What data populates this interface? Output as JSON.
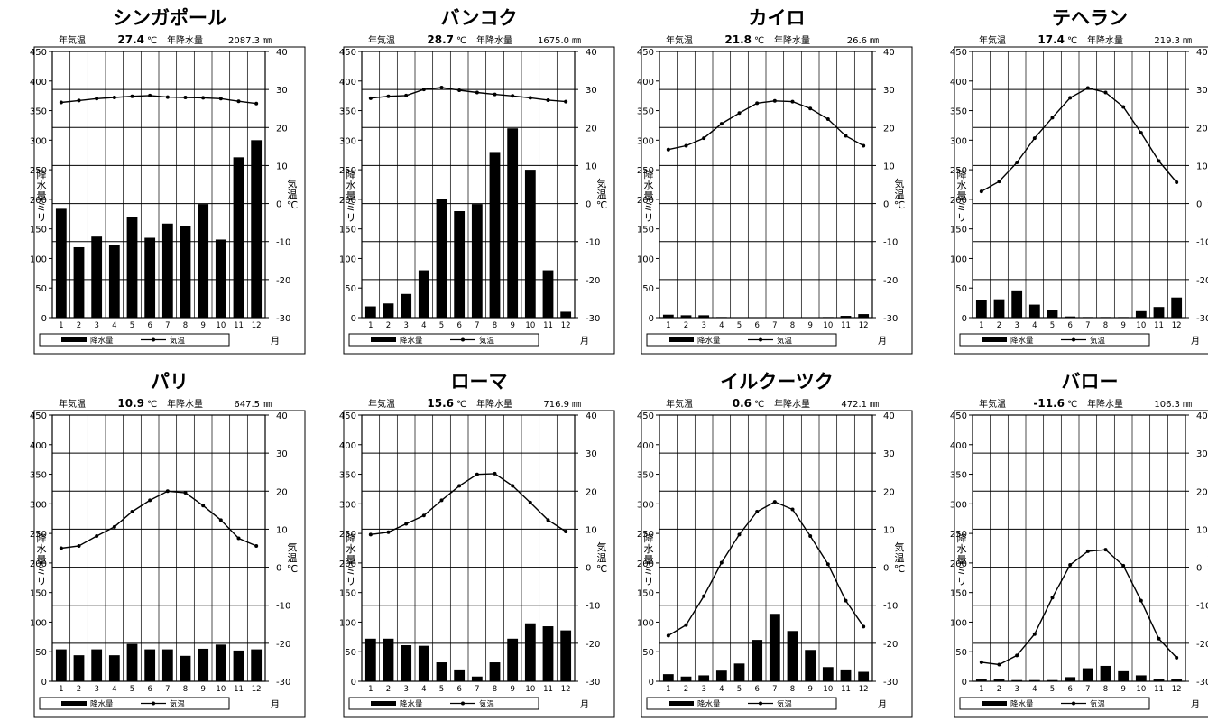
{
  "labels": {
    "annual_temp": "年気温",
    "temp_unit": "℃",
    "annual_precip": "年降水量",
    "precip_unit": "㎜",
    "left_axis": [
      "降",
      "水",
      "量",
      "ミ",
      "リ"
    ],
    "right_axis": [
      "気",
      "温",
      "℃"
    ],
    "month_unit": "月",
    "legend_precip": "降水量",
    "legend_temp": "気温"
  },
  "chart_data": [
    {
      "type": "bar+line",
      "title": "シンガポール",
      "annual_temp": "27.4",
      "annual_precip": "2087.3",
      "categories": [
        "1",
        "2",
        "3",
        "4",
        "5",
        "6",
        "7",
        "8",
        "9",
        "10",
        "11",
        "12"
      ],
      "series": [
        {
          "name": "降水量",
          "axis": "left",
          "type": "bar",
          "values": [
            184,
            119,
            137,
            123,
            170,
            135,
            159,
            155,
            192,
            132,
            271,
            300
          ]
        },
        {
          "name": "気温",
          "axis": "right",
          "type": "line",
          "values": [
            26.6,
            27.1,
            27.6,
            27.9,
            28.2,
            28.4,
            28.0,
            27.9,
            27.8,
            27.6,
            26.9,
            26.3
          ]
        }
      ],
      "ylim_left": [
        0,
        450
      ],
      "yticks_left": [
        0,
        50,
        100,
        150,
        200,
        250,
        300,
        350,
        400,
        450
      ],
      "ylim_right": [
        -30,
        40
      ],
      "yticks_right": [
        -30,
        -20,
        -10,
        0,
        10,
        20,
        30,
        40
      ],
      "grid": true,
      "legend_position": "bottom"
    },
    {
      "type": "bar+line",
      "title": "バンコク",
      "annual_temp": "28.7",
      "annual_precip": "1675.0",
      "categories": [
        "1",
        "2",
        "3",
        "4",
        "5",
        "6",
        "7",
        "8",
        "9",
        "10",
        "11",
        "12"
      ],
      "series": [
        {
          "name": "降水量",
          "axis": "left",
          "type": "bar",
          "values": [
            19,
            24,
            40,
            80,
            200,
            180,
            192,
            280,
            320,
            250,
            80,
            10
          ]
        },
        {
          "name": "気温",
          "axis": "right",
          "type": "line",
          "values": [
            27.7,
            28.2,
            28.4,
            30.0,
            30.5,
            29.8,
            29.2,
            28.7,
            28.3,
            27.8,
            27.2,
            26.8
          ]
        }
      ],
      "ylim_left": [
        0,
        450
      ],
      "yticks_left": [
        0,
        50,
        100,
        150,
        200,
        250,
        300,
        350,
        400,
        450
      ],
      "ylim_right": [
        -30,
        40
      ],
      "yticks_right": [
        -30,
        -20,
        -10,
        0,
        10,
        20,
        30,
        40
      ],
      "grid": true,
      "legend_position": "bottom"
    },
    {
      "type": "bar+line",
      "title": "カイロ",
      "annual_temp": "21.8",
      "annual_precip": "26.6",
      "categories": [
        "1",
        "2",
        "3",
        "4",
        "5",
        "6",
        "7",
        "8",
        "9",
        "10",
        "11",
        "12"
      ],
      "series": [
        {
          "name": "降水量",
          "axis": "left",
          "type": "bar",
          "values": [
            5,
            4,
            4,
            1,
            0,
            0,
            0,
            0,
            0,
            1,
            3,
            6
          ]
        },
        {
          "name": "気温",
          "axis": "right",
          "type": "line",
          "values": [
            14.2,
            15.2,
            17.2,
            21.0,
            23.8,
            26.4,
            27.0,
            26.8,
            25.0,
            22.2,
            17.8,
            15.2
          ]
        }
      ],
      "ylim_left": [
        0,
        450
      ],
      "yticks_left": [
        0,
        50,
        100,
        150,
        200,
        250,
        300,
        350,
        400,
        450
      ],
      "ylim_right": [
        -30,
        40
      ],
      "yticks_right": [
        -30,
        -20,
        -10,
        0,
        10,
        20,
        30,
        40
      ],
      "grid": true,
      "legend_position": "bottom"
    },
    {
      "type": "bar+line",
      "title": "テヘラン",
      "annual_temp": "17.4",
      "annual_precip": "219.3",
      "categories": [
        "1",
        "2",
        "3",
        "4",
        "5",
        "6",
        "7",
        "8",
        "9",
        "10",
        "11",
        "12"
      ],
      "series": [
        {
          "name": "降水量",
          "axis": "left",
          "type": "bar",
          "values": [
            30,
            31,
            46,
            22,
            13,
            2,
            1,
            1,
            1,
            11,
            18,
            34
          ]
        },
        {
          "name": "気温",
          "axis": "right",
          "type": "line",
          "values": [
            3.2,
            5.8,
            10.8,
            17.2,
            22.6,
            27.8,
            30.4,
            29.2,
            25.4,
            18.6,
            11.2,
            5.6
          ]
        }
      ],
      "ylim_left": [
        0,
        450
      ],
      "yticks_left": [
        0,
        50,
        100,
        150,
        200,
        250,
        300,
        350,
        400,
        450
      ],
      "ylim_right": [
        -30,
        40
      ],
      "yticks_right": [
        -30,
        -20,
        -10,
        0,
        10,
        20,
        30,
        40
      ],
      "grid": true,
      "legend_position": "bottom"
    },
    {
      "type": "bar+line",
      "title": "パリ",
      "annual_temp": "10.9",
      "annual_precip": "647.5",
      "categories": [
        "1",
        "2",
        "3",
        "4",
        "5",
        "6",
        "7",
        "8",
        "9",
        "10",
        "11",
        "12"
      ],
      "series": [
        {
          "name": "降水量",
          "axis": "left",
          "type": "bar",
          "values": [
            54,
            44,
            54,
            44,
            63,
            54,
            54,
            43,
            55,
            62,
            52,
            54
          ]
        },
        {
          "name": "気温",
          "axis": "right",
          "type": "line",
          "values": [
            5.0,
            5.6,
            8.2,
            10.6,
            14.6,
            17.6,
            20.0,
            19.6,
            16.2,
            12.4,
            7.6,
            5.6
          ]
        }
      ],
      "ylim_left": [
        0,
        450
      ],
      "yticks_left": [
        0,
        50,
        100,
        150,
        200,
        250,
        300,
        350,
        400,
        450
      ],
      "ylim_right": [
        -30,
        40
      ],
      "yticks_right": [
        -30,
        -20,
        -10,
        0,
        10,
        20,
        30,
        40
      ],
      "grid": true,
      "legend_position": "bottom"
    },
    {
      "type": "bar+line",
      "title": "ローマ",
      "annual_temp": "15.6",
      "annual_precip": "716.9",
      "categories": [
        "1",
        "2",
        "3",
        "4",
        "5",
        "6",
        "7",
        "8",
        "9",
        "10",
        "11",
        "12"
      ],
      "series": [
        {
          "name": "降水量",
          "axis": "left",
          "type": "bar",
          "values": [
            72,
            72,
            61,
            60,
            32,
            20,
            8,
            32,
            72,
            98,
            93,
            86
          ]
        },
        {
          "name": "気温",
          "axis": "right",
          "type": "line",
          "values": [
            8.6,
            9.2,
            11.4,
            13.6,
            17.6,
            21.4,
            24.4,
            24.6,
            21.4,
            17.0,
            12.4,
            9.4
          ]
        }
      ],
      "ylim_left": [
        0,
        450
      ],
      "yticks_left": [
        0,
        50,
        100,
        150,
        200,
        250,
        300,
        350,
        400,
        450
      ],
      "ylim_right": [
        -30,
        40
      ],
      "yticks_right": [
        -30,
        -20,
        -10,
        0,
        10,
        20,
        30,
        40
      ],
      "grid": true,
      "legend_position": "bottom"
    },
    {
      "type": "bar+line",
      "title": "イルクーツク",
      "annual_temp": "0.6",
      "annual_precip": "472.1",
      "categories": [
        "1",
        "2",
        "3",
        "4",
        "5",
        "6",
        "7",
        "8",
        "9",
        "10",
        "11",
        "12"
      ],
      "series": [
        {
          "name": "降水量",
          "axis": "left",
          "type": "bar",
          "values": [
            12,
            8,
            10,
            18,
            30,
            70,
            114,
            85,
            53,
            24,
            20,
            16
          ]
        },
        {
          "name": "気温",
          "axis": "right",
          "type": "line",
          "values": [
            -18.0,
            -15.2,
            -7.6,
            1.2,
            8.6,
            14.6,
            17.2,
            15.2,
            8.2,
            0.8,
            -8.8,
            -15.6
          ]
        }
      ],
      "ylim_left": [
        0,
        450
      ],
      "yticks_left": [
        0,
        50,
        100,
        150,
        200,
        250,
        300,
        350,
        400,
        450
      ],
      "ylim_right": [
        -30,
        40
      ],
      "yticks_right": [
        -30,
        -20,
        -10,
        0,
        10,
        20,
        30,
        40
      ],
      "grid": true,
      "legend_position": "bottom"
    },
    {
      "type": "bar+line",
      "title": "バロー",
      "annual_temp": "-11.6",
      "annual_precip": "106.3",
      "categories": [
        "1",
        "2",
        "3",
        "4",
        "5",
        "6",
        "7",
        "8",
        "9",
        "10",
        "11",
        "12"
      ],
      "series": [
        {
          "name": "降水量",
          "axis": "left",
          "type": "bar",
          "values": [
            3,
            3,
            2,
            2,
            2,
            7,
            22,
            26,
            17,
            10,
            3,
            3
          ]
        },
        {
          "name": "気温",
          "axis": "right",
          "type": "line",
          "values": [
            -25.0,
            -25.6,
            -23.2,
            -17.6,
            -8.0,
            0.6,
            4.2,
            4.6,
            0.4,
            -8.8,
            -18.8,
            -23.8
          ]
        }
      ],
      "ylim_left": [
        0,
        450
      ],
      "yticks_left": [
        0,
        50,
        100,
        150,
        200,
        250,
        300,
        350,
        400,
        450
      ],
      "ylim_right": [
        -30,
        40
      ],
      "yticks_right": [
        -30,
        -20,
        -10,
        0,
        10,
        20,
        30,
        40
      ],
      "grid": true,
      "legend_position": "bottom"
    }
  ]
}
